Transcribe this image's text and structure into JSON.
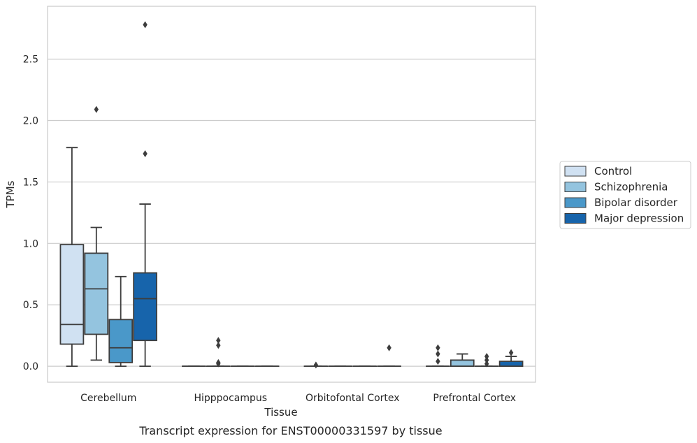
{
  "chart_data": {
    "type": "boxplot",
    "title": "",
    "caption": "Transcript expression for ENST00000331597 by tissue",
    "xlabel": "Tissue",
    "ylabel": "TPMs",
    "ylim": [
      -0.13,
      2.93
    ],
    "yticks": [
      0.0,
      0.5,
      1.0,
      1.5,
      2.0,
      2.5
    ],
    "ytick_labels": [
      "0.0",
      "0.5",
      "1.0",
      "1.5",
      "2.0",
      "2.5"
    ],
    "grid": "horizontal",
    "legend_position": "right",
    "categories": [
      "Cerebellum",
      "Hipppocampus",
      "Orbitofontal Cortex",
      "Prefrontal Cortex"
    ],
    "series": [
      {
        "name": "Control",
        "color": "#d0e1f2",
        "boxes": [
          {
            "whislo": 0.0,
            "q1": 0.18,
            "med": 0.34,
            "q3": 0.99,
            "whishi": 1.78,
            "fliers": []
          },
          {
            "whislo": 0.0,
            "q1": 0.0,
            "med": 0.0,
            "q3": 0.0,
            "whishi": 0.0,
            "fliers": []
          },
          {
            "whislo": 0.0,
            "q1": 0.0,
            "med": 0.0,
            "q3": 0.0,
            "whishi": 0.0,
            "fliers": [
              0.01
            ]
          },
          {
            "whislo": 0.0,
            "q1": 0.0,
            "med": 0.0,
            "q3": 0.0,
            "whishi": 0.0,
            "fliers": [
              0.04,
              0.1,
              0.15
            ]
          }
        ]
      },
      {
        "name": "Schizophrenia",
        "color": "#94c4df",
        "boxes": [
          {
            "whislo": 0.05,
            "q1": 0.26,
            "med": 0.63,
            "q3": 0.92,
            "whishi": 1.13,
            "fliers": [
              2.09
            ]
          },
          {
            "whislo": 0.0,
            "q1": 0.0,
            "med": 0.0,
            "q3": 0.0,
            "whishi": 0.0,
            "fliers": [
              0.02,
              0.03,
              0.17,
              0.21
            ]
          },
          {
            "whislo": 0.0,
            "q1": 0.0,
            "med": 0.0,
            "q3": 0.0,
            "whishi": 0.0,
            "fliers": []
          },
          {
            "whislo": 0.0,
            "q1": 0.0,
            "med": 0.0,
            "q3": 0.05,
            "whishi": 0.1,
            "fliers": []
          }
        ]
      },
      {
        "name": "Bipolar disorder",
        "color": "#4a98c9",
        "boxes": [
          {
            "whislo": 0.0,
            "q1": 0.03,
            "med": 0.15,
            "q3": 0.38,
            "whishi": 0.73,
            "fliers": []
          },
          {
            "whislo": 0.0,
            "q1": 0.0,
            "med": 0.0,
            "q3": 0.0,
            "whishi": 0.0,
            "fliers": []
          },
          {
            "whislo": 0.0,
            "q1": 0.0,
            "med": 0.0,
            "q3": 0.0,
            "whishi": 0.0,
            "fliers": []
          },
          {
            "whislo": 0.0,
            "q1": 0.0,
            "med": 0.0,
            "q3": 0.0,
            "whishi": 0.0,
            "fliers": [
              0.02,
              0.05,
              0.08
            ]
          }
        ]
      },
      {
        "name": "Major depression",
        "color": "#1764ab",
        "boxes": [
          {
            "whislo": 0.0,
            "q1": 0.21,
            "med": 0.55,
            "q3": 0.76,
            "whishi": 1.32,
            "fliers": [
              1.73,
              2.78
            ]
          },
          {
            "whislo": 0.0,
            "q1": 0.0,
            "med": 0.0,
            "q3": 0.0,
            "whishi": 0.0,
            "fliers": []
          },
          {
            "whislo": 0.0,
            "q1": 0.0,
            "med": 0.0,
            "q3": 0.0,
            "whishi": 0.0,
            "fliers": [
              0.15
            ]
          },
          {
            "whislo": 0.0,
            "q1": 0.0,
            "med": 0.0,
            "q3": 0.04,
            "whishi": 0.08,
            "fliers": [
              0.11
            ]
          }
        ]
      }
    ]
  }
}
